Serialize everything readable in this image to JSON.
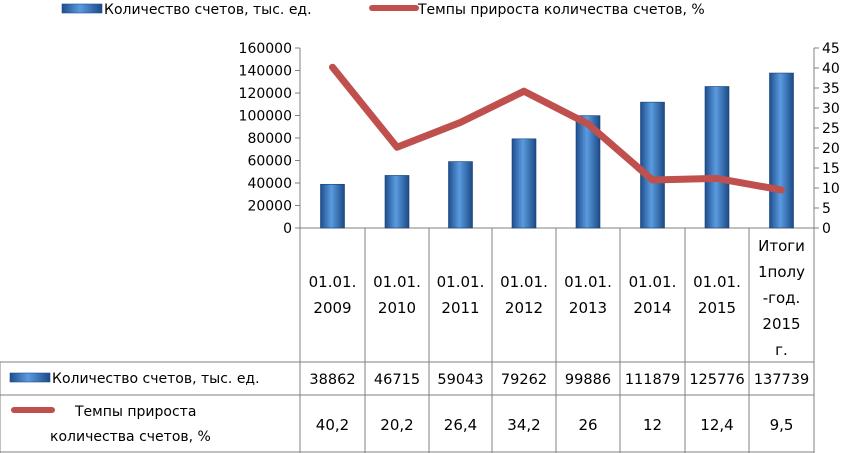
{
  "chart_data": {
    "type": "bar",
    "categories": [
      [
        "01.01.",
        "2009"
      ],
      [
        "01.01.",
        "2010"
      ],
      [
        "01.01.",
        "2011"
      ],
      [
        "01.01.",
        "2012"
      ],
      [
        "01.01.",
        "2013"
      ],
      [
        "01.01.",
        "2014"
      ],
      [
        "01.01.",
        "2015"
      ],
      [
        "Итоги",
        "1полу",
        "-год.",
        "2015",
        "г."
      ]
    ],
    "series": [
      {
        "name": "Количество счетов, тыс. ед.",
        "type": "bar",
        "axis": "left",
        "values": [
          38862,
          46715,
          59043,
          79262,
          99886,
          111879,
          125776,
          137739
        ],
        "display": [
          "38862",
          "46715",
          "59043",
          "79262",
          "99886",
          "111879",
          "125776",
          "137739"
        ],
        "color": "#2e6db5"
      },
      {
        "name": "Темпы прироста количества счетов, %",
        "table_label": [
          "Темпы прироста",
          "количества счетов, %"
        ],
        "type": "line",
        "axis": "right",
        "values": [
          40.2,
          20.2,
          26.4,
          34.2,
          26,
          12,
          12.4,
          9.5
        ],
        "display": [
          "40,2",
          "20,2",
          "26,4",
          "34,2",
          "26",
          "12",
          "12,4",
          "9,5"
        ],
        "color": "#c0504d"
      }
    ],
    "y_left": {
      "range": [
        0,
        160000
      ],
      "ticks": [
        "0",
        "20000",
        "40000",
        "60000",
        "80000",
        "100000",
        "120000",
        "140000",
        "160000"
      ]
    },
    "y_right": {
      "range": [
        0,
        45
      ],
      "ticks": [
        "0",
        "5",
        "10",
        "15",
        "20",
        "25",
        "30",
        "35",
        "40",
        "45"
      ]
    },
    "legend_position": "top",
    "data_table": true,
    "grid": false
  }
}
